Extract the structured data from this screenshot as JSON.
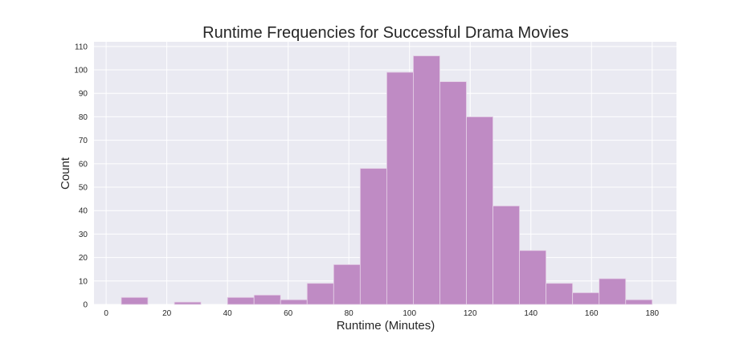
{
  "chart_data": {
    "type": "bar",
    "title": "Runtime Frequencies for Successful Drama Movies",
    "xlabel": "Runtime (Minutes)",
    "ylabel": "Count",
    "xlim": [
      -4,
      188
    ],
    "ylim": [
      0,
      112
    ],
    "xticks": [
      0,
      20,
      40,
      60,
      80,
      100,
      120,
      140,
      160,
      180
    ],
    "yticks": [
      0,
      10,
      20,
      30,
      40,
      50,
      60,
      70,
      80,
      90,
      100,
      110
    ],
    "bin_edges": [
      5,
      13.75,
      22.5,
      31.25,
      40,
      48.75,
      57.5,
      66.25,
      75,
      83.75,
      92.5,
      101.25,
      110,
      118.75,
      127.5,
      136.25,
      145,
      153.75,
      162.5,
      171.25,
      180
    ],
    "values": [
      3,
      0,
      1,
      0,
      3,
      4,
      2,
      9,
      17,
      58,
      99,
      106,
      95,
      80,
      42,
      23,
      9,
      5,
      11,
      2
    ],
    "grid": true,
    "colors": {
      "bar": "#bf8bc4",
      "bar_edge": "#e6d3e8",
      "plot_background": "#eaeaf2",
      "grid": "#ffffff"
    }
  }
}
